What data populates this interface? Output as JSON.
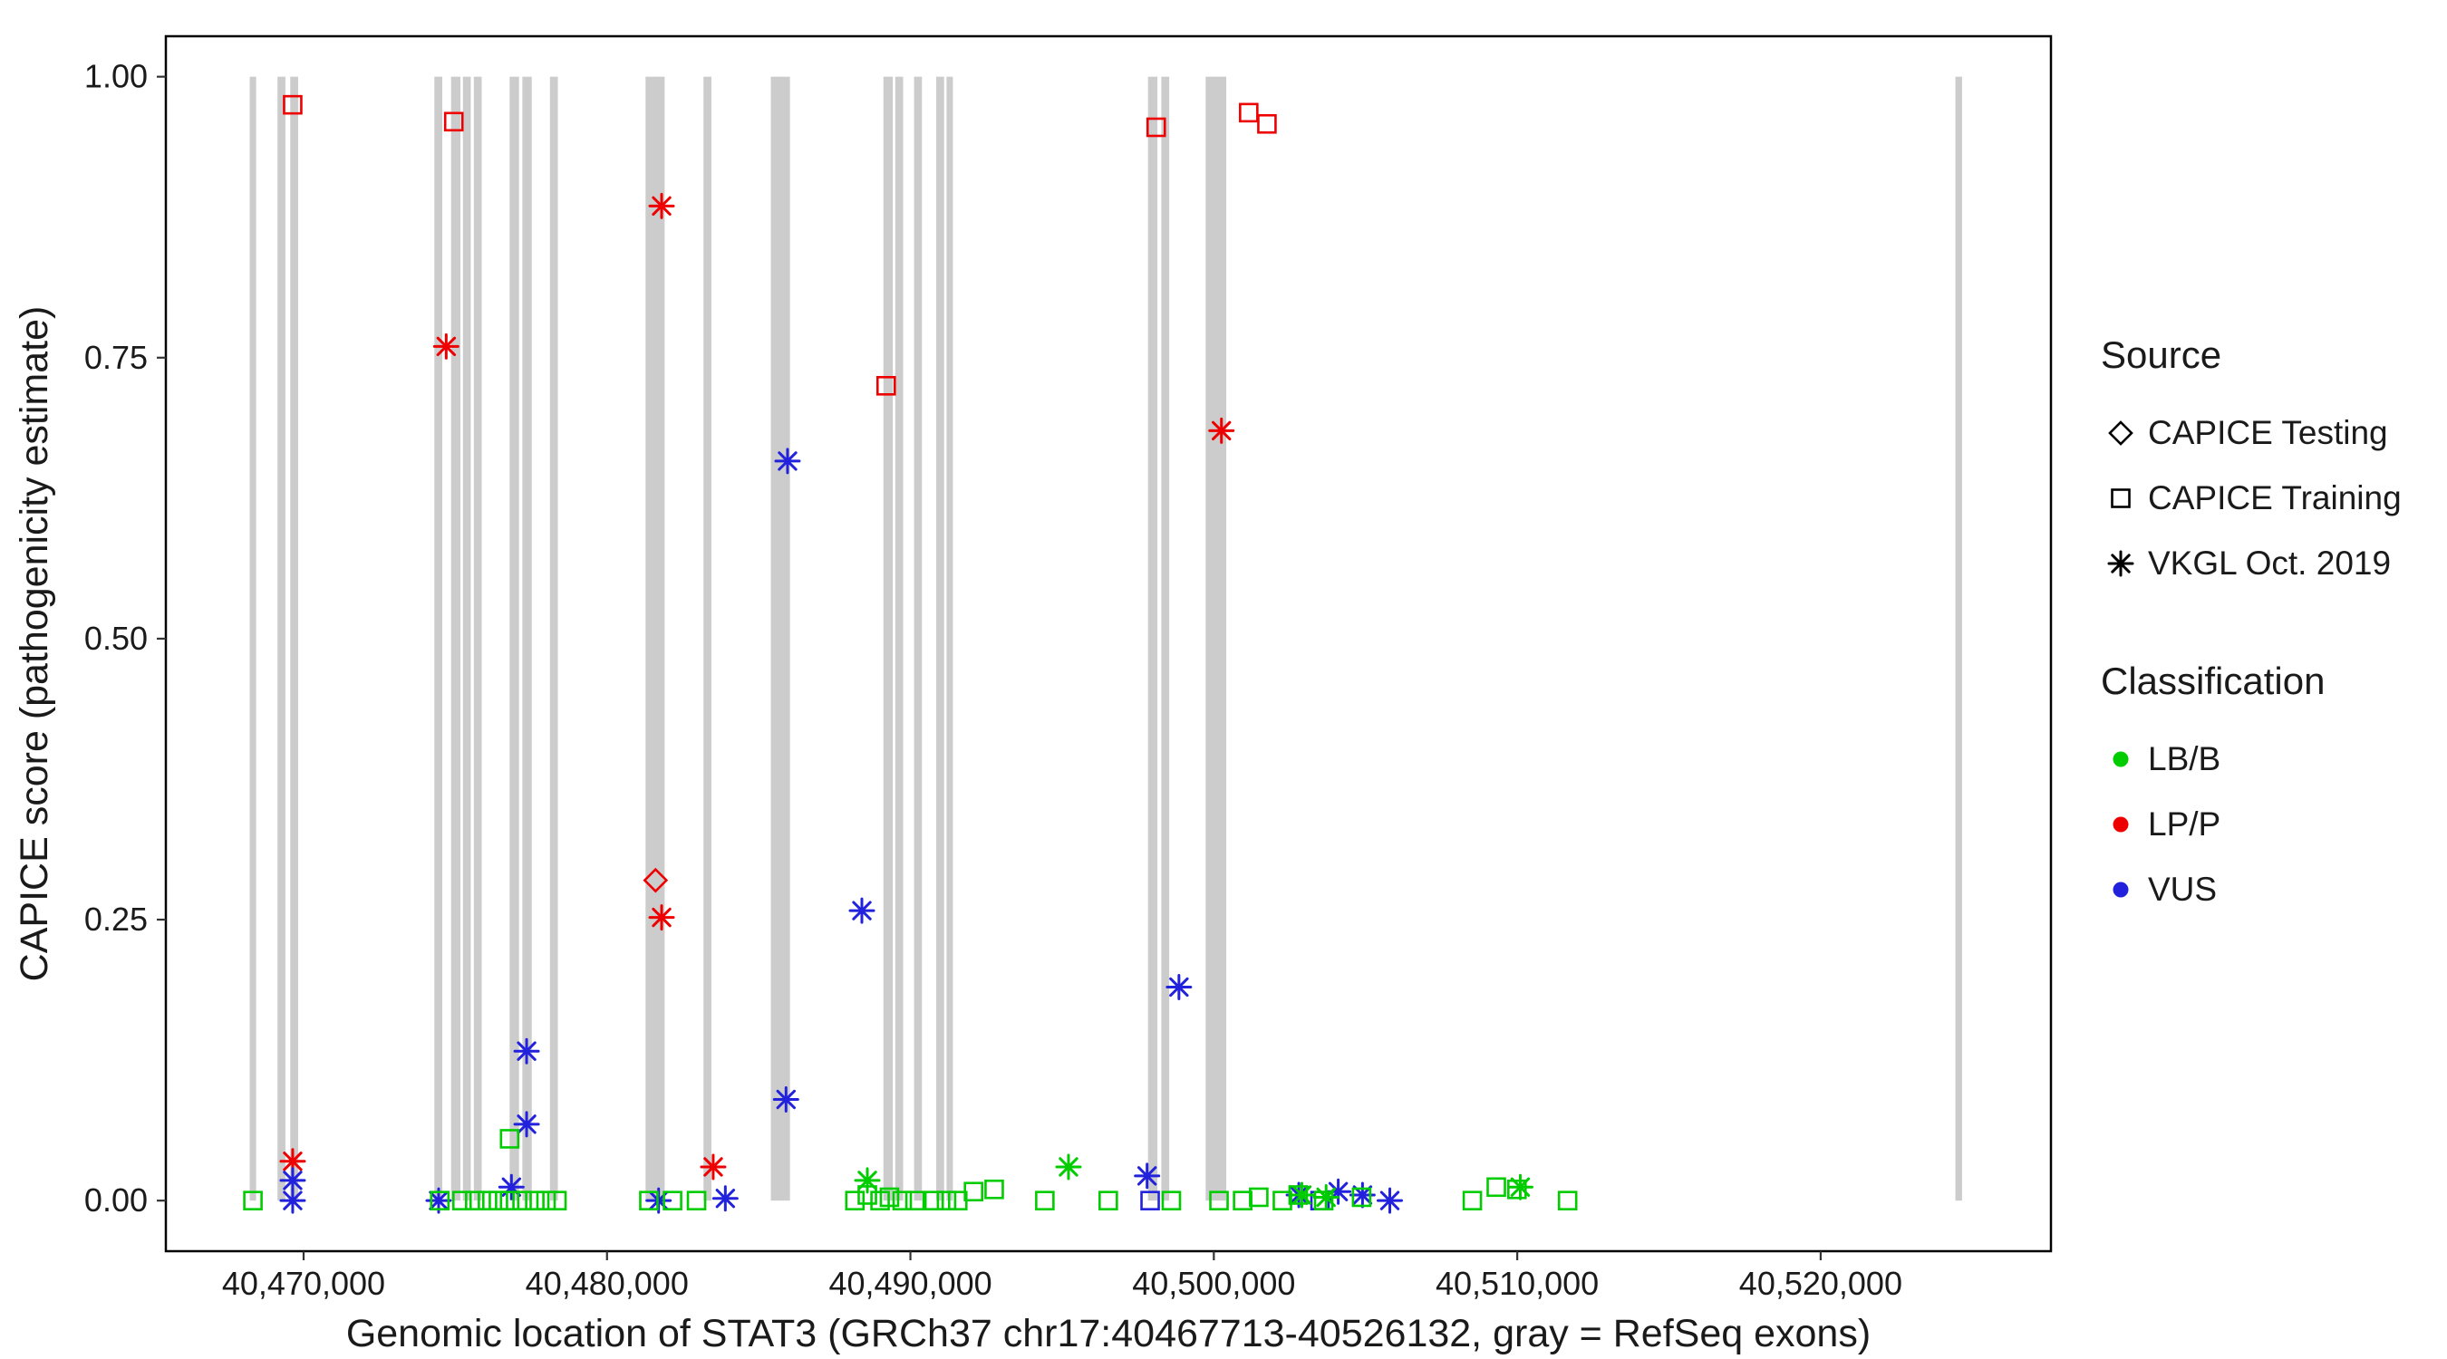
{
  "figure": {
    "background": "#FFFFFF"
  },
  "legend": {
    "source": {
      "title": "Source",
      "items": [
        {
          "label": "CAPICE Testing",
          "shape": "diamond"
        },
        {
          "label": "CAPICE Training",
          "shape": "square"
        },
        {
          "label": "VKGL Oct. 2019",
          "shape": "asterisk"
        }
      ]
    },
    "classification": {
      "title": "Classification",
      "items": [
        {
          "label": "LB/B",
          "color": "#00CC00"
        },
        {
          "label": "LP/P",
          "color": "#EE0000"
        },
        {
          "label": "VUS",
          "color": "#2222DD"
        }
      ]
    }
  },
  "chart_data": {
    "type": "scatter",
    "title": "",
    "xlabel": "Genomic location of STAT3 (GRCh37 chr17:40467713-40526132, gray = RefSeq exons)",
    "ylabel": "CAPICE score (pathogenicity estimate)",
    "xlim": [
      40465460,
      40527590
    ],
    "ylim": [
      -0.045,
      1.036
    ],
    "grid": false,
    "legend_position": "right",
    "x_ticks": [
      {
        "value": 40470000,
        "label": "40,470,000"
      },
      {
        "value": 40480000,
        "label": "40,480,000"
      },
      {
        "value": 40490000,
        "label": "40,490,000"
      },
      {
        "value": 40500000,
        "label": "40,500,000"
      },
      {
        "value": 40510000,
        "label": "40,510,000"
      },
      {
        "value": 40520000,
        "label": "40,520,000"
      }
    ],
    "y_ticks": [
      {
        "value": 0.0,
        "label": "0.00"
      },
      {
        "value": 0.25,
        "label": "0.25"
      },
      {
        "value": 0.5,
        "label": "0.50"
      },
      {
        "value": 0.75,
        "label": "0.75"
      },
      {
        "value": 1.0,
        "label": "1.00"
      }
    ],
    "exon_color": "#CCCCCC",
    "exon_y_range": [
      0.0,
      1.0
    ],
    "exons": [
      [
        40468225,
        40468435
      ],
      [
        40469140,
        40469400
      ],
      [
        40469560,
        40469820
      ],
      [
        40474310,
        40474570
      ],
      [
        40474860,
        40475170
      ],
      [
        40475250,
        40475510
      ],
      [
        40475610,
        40475870
      ],
      [
        40476790,
        40477100
      ],
      [
        40477210,
        40477520
      ],
      [
        40478120,
        40478380
      ],
      [
        40481270,
        40481900
      ],
      [
        40483180,
        40483440
      ],
      [
        40485400,
        40486030
      ],
      [
        40489110,
        40489420
      ],
      [
        40489500,
        40489760
      ],
      [
        40490120,
        40490380
      ],
      [
        40490850,
        40491110
      ],
      [
        40491190,
        40491400
      ],
      [
        40497830,
        40498140
      ],
      [
        40498270,
        40498530
      ],
      [
        40499730,
        40500410
      ],
      [
        40524440,
        40524660
      ]
    ],
    "series": [
      {
        "name": "CAPICE Testing / LP/P",
        "source": "CAPICE Testing",
        "classification": "LP/P",
        "shape": "diamond",
        "color": "#EE0000",
        "points": [
          [
            40481600,
            0.285
          ]
        ]
      },
      {
        "name": "CAPICE Training / LP/P",
        "source": "CAPICE Training",
        "classification": "LP/P",
        "shape": "square",
        "color": "#EE0000",
        "points": [
          [
            40469640,
            0.975
          ],
          [
            40474950,
            0.96
          ],
          [
            40489200,
            0.725
          ],
          [
            40498100,
            0.955
          ],
          [
            40501150,
            0.968
          ],
          [
            40501750,
            0.958
          ]
        ]
      },
      {
        "name": "VKGL Oct. 2019 / LP/P",
        "source": "VKGL Oct. 2019",
        "classification": "LP/P",
        "shape": "asterisk",
        "color": "#EE0000",
        "points": [
          [
            40474700,
            0.76
          ],
          [
            40481800,
            0.885
          ],
          [
            40500250,
            0.685
          ],
          [
            40481800,
            0.252
          ],
          [
            40469640,
            0.035
          ],
          [
            40483500,
            0.03
          ]
        ]
      },
      {
        "name": "CAPICE Training / VUS",
        "source": "CAPICE Training",
        "classification": "VUS",
        "shape": "square",
        "color": "#2222DD",
        "points": [
          [
            40497900,
            0.0
          ],
          [
            40503500,
            0.0
          ]
        ]
      },
      {
        "name": "VKGL Oct. 2019 / VUS",
        "source": "VKGL Oct. 2019",
        "classification": "VUS",
        "shape": "asterisk",
        "color": "#2222DD",
        "points": [
          [
            40485950,
            0.658
          ],
          [
            40488400,
            0.258
          ],
          [
            40498850,
            0.19
          ],
          [
            40477350,
            0.133
          ],
          [
            40485900,
            0.09
          ],
          [
            40477350,
            0.068
          ],
          [
            40469640,
            0.018
          ],
          [
            40497800,
            0.022
          ],
          [
            40476850,
            0.012
          ],
          [
            40469640,
            0.0
          ],
          [
            40474450,
            0.0
          ],
          [
            40481700,
            0.0
          ],
          [
            40483900,
            0.002
          ],
          [
            40502800,
            0.005
          ],
          [
            40504100,
            0.008
          ],
          [
            40505800,
            0.0
          ],
          [
            40504900,
            0.005
          ]
        ]
      },
      {
        "name": "CAPICE Training / LB/B",
        "source": "CAPICE Training",
        "classification": "LB/B",
        "shape": "square",
        "color": "#00CC00",
        "points": [
          [
            40468330,
            0.0
          ],
          [
            40474490,
            0.0
          ],
          [
            40475220,
            0.0
          ],
          [
            40475640,
            0.0
          ],
          [
            40476060,
            0.0
          ],
          [
            40476420,
            0.0
          ],
          [
            40476790,
            0.055
          ],
          [
            40476790,
            0.0
          ],
          [
            40477200,
            0.0
          ],
          [
            40477620,
            0.0
          ],
          [
            40477990,
            0.0
          ],
          [
            40478350,
            0.0
          ],
          [
            40481380,
            0.0
          ],
          [
            40482160,
            0.0
          ],
          [
            40482950,
            0.0
          ],
          [
            40488170,
            0.0
          ],
          [
            40488580,
            0.005
          ],
          [
            40489000,
            0.0
          ],
          [
            40489310,
            0.003
          ],
          [
            40489730,
            0.0
          ],
          [
            40490150,
            0.0
          ],
          [
            40490780,
            0.0
          ],
          [
            40491190,
            0.0
          ],
          [
            40491560,
            0.0
          ],
          [
            40492080,
            0.008
          ],
          [
            40492760,
            0.01
          ],
          [
            40494430,
            0.0
          ],
          [
            40496520,
            0.0
          ],
          [
            40498600,
            0.0
          ],
          [
            40500170,
            0.0
          ],
          [
            40500950,
            0.0
          ],
          [
            40501480,
            0.003
          ],
          [
            40502260,
            0.0
          ],
          [
            40502780,
            0.005
          ],
          [
            40503620,
            0.0
          ],
          [
            40504870,
            0.003
          ],
          [
            40508520,
            0.0
          ],
          [
            40509310,
            0.012
          ],
          [
            40509990,
            0.01
          ],
          [
            40511660,
            0.0
          ]
        ]
      },
      {
        "name": "VKGL Oct. 2019 / LB/B",
        "source": "VKGL Oct. 2019",
        "classification": "LB/B",
        "shape": "asterisk",
        "color": "#00CC00",
        "points": [
          [
            40488580,
            0.018
          ],
          [
            40495210,
            0.03
          ],
          [
            40502900,
            0.005
          ],
          [
            40510100,
            0.012
          ],
          [
            40503700,
            0.003
          ]
        ]
      }
    ]
  }
}
